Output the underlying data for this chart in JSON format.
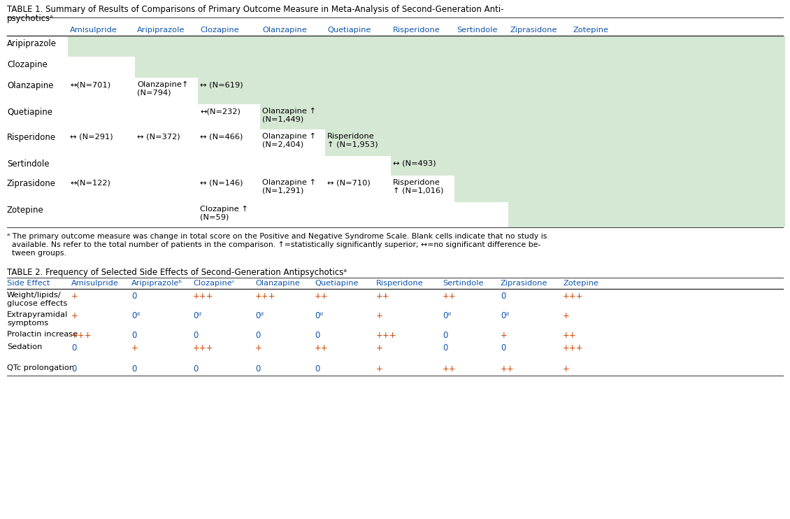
{
  "table1_title_line1": "TABLE 1. Summary of Results of Comparisons of Primary Outcome Measure in Meta-Analysis of Second-Generation Anti-",
  "table1_title_line2": "psychoticsᵃ",
  "table1_col_labels": [
    "Amisulpride",
    "Aripiprazole",
    "Clozapine",
    "Olanzapine",
    "Quetiapine",
    "Risperidone",
    "Sertindole",
    "Ziprasidone",
    "Zotepine"
  ],
  "table1_rows": [
    {
      "label": "Aripiprazole",
      "cells": [
        "",
        "",
        "",
        "",
        "",
        "",
        "",
        "",
        ""
      ]
    },
    {
      "label": "Clozapine",
      "cells": [
        "",
        "",
        "",
        "",
        "",
        "",
        "",
        "",
        ""
      ]
    },
    {
      "label": "Olanzapine",
      "cells": [
        "↔(N=701)",
        "Olanzapine↑\n(N=794)",
        "↔ (N=619)",
        "",
        "",
        "",
        "",
        "",
        ""
      ]
    },
    {
      "label": "Quetiapine",
      "cells": [
        "",
        "",
        "↔(N=232)",
        "Olanzapine ↑\n(N=1,449)",
        "",
        "",
        "",
        "",
        ""
      ]
    },
    {
      "label": "Risperidone",
      "cells": [
        "↔ (N=291)",
        "↔ (N=372)",
        "↔ (N=466)",
        "Olanzapine ↑\n(N=2,404)",
        "Risperidone\n↑ (N=1,953)",
        "",
        "",
        "",
        ""
      ]
    },
    {
      "label": "Sertindole",
      "cells": [
        "",
        "",
        "",
        "",
        "",
        "↔ (N=493)",
        "",
        "",
        ""
      ]
    },
    {
      "label": "Ziprasidone",
      "cells": [
        "↔(N=122)",
        "",
        "↔ (N=146)",
        "Olanzapine ↑\n(N=1,291)",
        "↔ (N=710)",
        "Risperidone\n↑ (N=1,016)",
        "",
        "",
        ""
      ]
    },
    {
      "label": "Zotepine",
      "cells": [
        "",
        "",
        "Clozapine ↑\n(N=59)",
        "",
        "",
        "",
        "",
        "",
        ""
      ]
    }
  ],
  "table1_footnote_lines": [
    "ᵃ The primary outcome measure was change in total score on the Positive and Negative Syndrome Scale. Blank cells indicate that no study is",
    "  available. Ns refer to the total number of patients in the comparison. ↑=statistically significantly superior; ↔=no significant difference be-",
    "  tween groups."
  ],
  "shaded_color": "#d5e8d4",
  "table2_title": "TABLE 2. Frequency of Selected Side Effects of Second-Generation Antipsychoticsᵃ",
  "table2_col_labels": [
    "Side Effect",
    "Amisulpride",
    "Aripiprazoleᵇ",
    "Clozapineᶜ",
    "Olanzapine",
    "Quetiapine",
    "Risperidone",
    "Sertindole",
    "Ziprasidone",
    "Zotepine"
  ],
  "table2_rows": [
    {
      "label": "Weight/lipids/\nglucose effects",
      "cells": [
        "+",
        "0",
        "+++",
        "+++",
        "++",
        "++",
        "++",
        "0",
        "+++"
      ]
    },
    {
      "label": "Extrapyramidal\nsymptoms",
      "cells": [
        "+",
        "0ᵈ",
        "0ᵈ",
        "0ᵈ",
        "0ᵈ",
        "+",
        "0ᵈ",
        "0ᵈ",
        "+"
      ]
    },
    {
      "label": "Prolactin increase",
      "cells": [
        "+++",
        "0",
        "0",
        "0",
        "0",
        "+++",
        "0",
        "+",
        "++"
      ]
    },
    {
      "label": "Sedation",
      "cells": [
        "0",
        "+",
        "+++",
        "+",
        "++",
        "+",
        "0",
        "0",
        "+++"
      ]
    },
    {
      "label": "",
      "cells": [
        "",
        "",
        "",
        "",
        "",
        "",
        "",
        "",
        ""
      ]
    },
    {
      "label": "QTc prolongation",
      "cells": [
        "0",
        "0",
        "0",
        "0",
        "0",
        "+",
        "++",
        "++",
        "+"
      ]
    }
  ],
  "plus_color": "#cc4400",
  "zero_color": "#1155aa",
  "header_color": "#1155aa",
  "text_color": "#000000",
  "bg_color": "#ffffff",
  "title_color": "#000000",
  "footnote_color": "#000000"
}
